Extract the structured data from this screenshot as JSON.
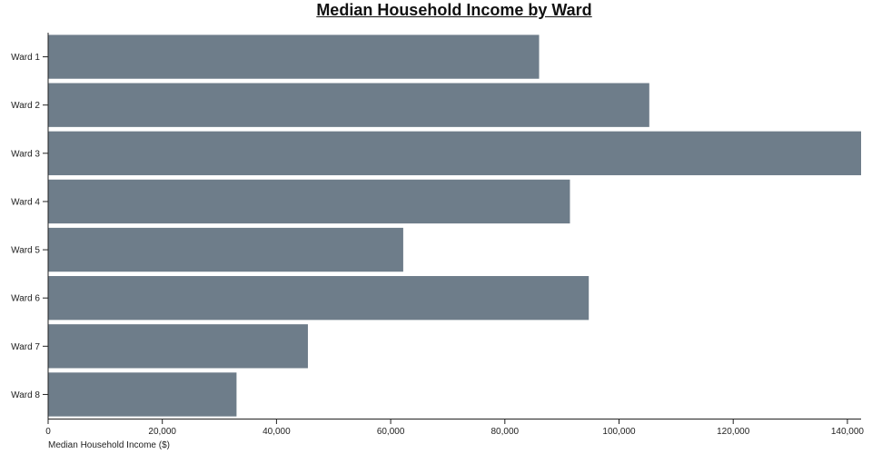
{
  "chart_data": {
    "type": "bar",
    "orientation": "horizontal",
    "title": "Median Household Income by Ward",
    "xlabel": "Median Household Income ($)",
    "ylabel": "",
    "categories": [
      "Ward 1",
      "Ward 2",
      "Ward 3",
      "Ward 4",
      "Ward 5",
      "Ward 6",
      "Ward 7",
      "Ward 8"
    ],
    "values": [
      86000,
      105300,
      142400,
      91400,
      62200,
      94700,
      45500,
      33000
    ],
    "xlim": [
      0,
      142400
    ],
    "xticks": [
      0,
      20000,
      40000,
      60000,
      80000,
      100000,
      120000,
      140000
    ],
    "xtick_labels": [
      "0",
      "20,000",
      "40,000",
      "60,000",
      "80,000",
      "100,000",
      "120,000",
      "140,000"
    ],
    "grid": false,
    "legend": "none",
    "bar_color": "#6e7d8a"
  }
}
